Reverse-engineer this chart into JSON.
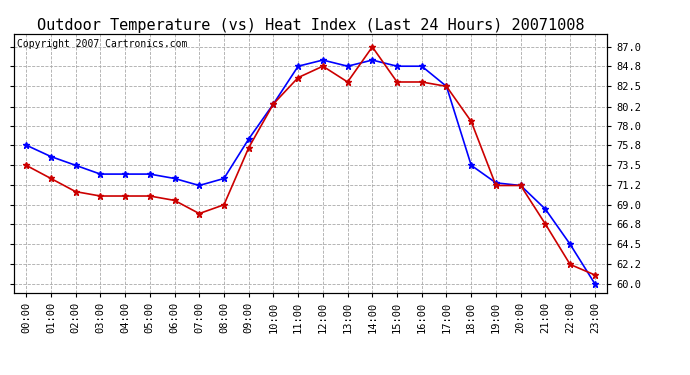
{
  "title": "Outdoor Temperature (vs) Heat Index (Last 24 Hours) 20071008",
  "copyright_text": "Copyright 2007 Cartronics.com",
  "x_labels": [
    "00:00",
    "01:00",
    "02:00",
    "03:00",
    "04:00",
    "05:00",
    "06:00",
    "07:00",
    "08:00",
    "09:00",
    "10:00",
    "11:00",
    "12:00",
    "13:00",
    "14:00",
    "15:00",
    "16:00",
    "17:00",
    "18:00",
    "19:00",
    "20:00",
    "21:00",
    "22:00",
    "23:00"
  ],
  "blue_temp": [
    75.8,
    74.5,
    73.5,
    72.5,
    72.5,
    72.5,
    72.0,
    71.2,
    72.0,
    76.5,
    80.5,
    84.8,
    85.5,
    84.8,
    85.5,
    84.8,
    84.8,
    82.5,
    73.5,
    71.5,
    71.2,
    68.5,
    64.5,
    60.0
  ],
  "red_heat": [
    73.5,
    72.0,
    70.5,
    70.0,
    70.0,
    70.0,
    69.5,
    68.0,
    69.0,
    75.5,
    80.5,
    83.5,
    84.8,
    83.0,
    87.0,
    83.0,
    83.0,
    82.5,
    78.5,
    71.2,
    71.2,
    66.8,
    62.2,
    61.0
  ],
  "blue_color": "#0000FF",
  "red_color": "#CC0000",
  "bg_color": "#FFFFFF",
  "grid_color": "#AAAAAA",
  "ylim_min": 59.0,
  "ylim_max": 88.5,
  "yticks": [
    60.0,
    62.2,
    64.5,
    66.8,
    69.0,
    71.2,
    73.5,
    75.8,
    78.0,
    80.2,
    82.5,
    84.8,
    87.0
  ],
  "title_fontsize": 11,
  "copyright_fontsize": 7,
  "tick_fontsize": 7.5,
  "marker": "*",
  "marker_size": 5,
  "line_width": 1.2
}
